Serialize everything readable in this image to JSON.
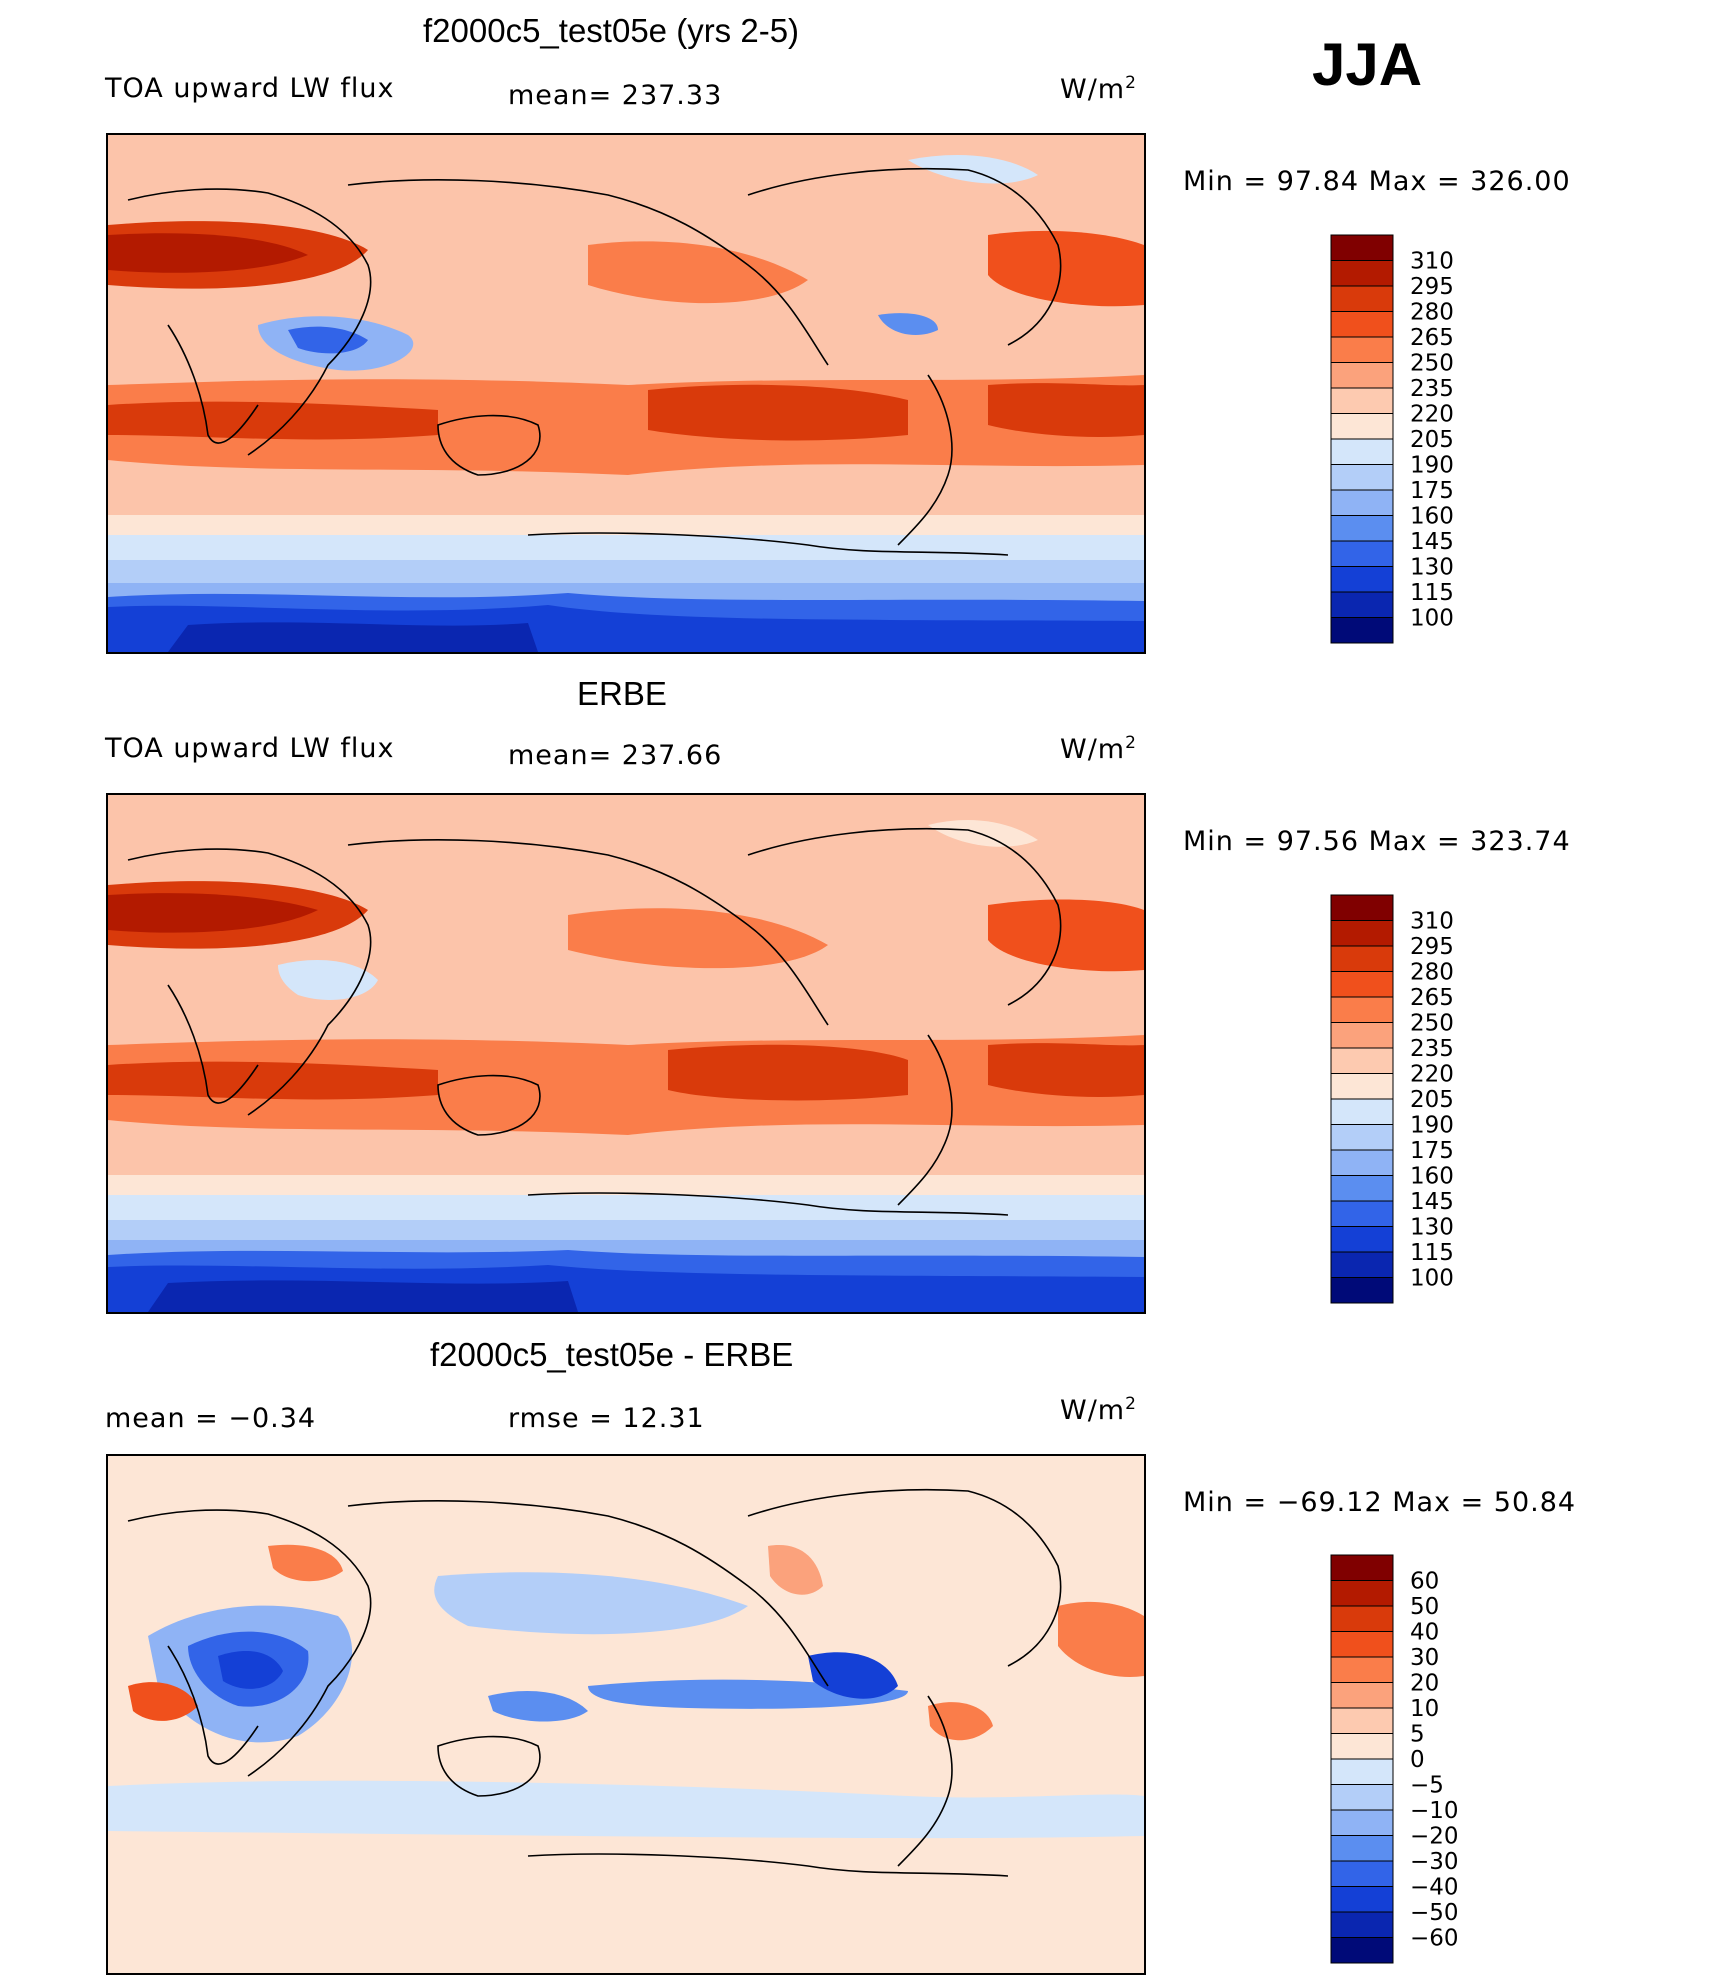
{
  "season": "JJA",
  "panels": [
    {
      "title": "f2000c5_test05e (yrs 2-5)",
      "left_label": "TOA upward LW flux",
      "center_label": "mean= 237.33",
      "units": "W/m",
      "units_exp": "2",
      "minmax": "Min =   97.84 Max =  326.00"
    },
    {
      "title": "ERBE",
      "left_label": "TOA upward LW flux",
      "center_label": "mean= 237.66",
      "units": "W/m",
      "units_exp": "2",
      "minmax": "Min =   97.56 Max =  323.74"
    },
    {
      "title": "f2000c5_test05e - ERBE",
      "left_label": "mean =   −0.34",
      "center_label": "rmse =   12.31",
      "units": "W/m",
      "units_exp": "2",
      "minmax": "Min = −69.12 Max =   50.84"
    }
  ],
  "chart_data": [
    {
      "type": "heatmap",
      "title": "f2000c5_test05e (yrs 2-5)",
      "variable": "TOA upward LW flux",
      "units": "W/m2",
      "mean": 237.33,
      "min": 97.84,
      "max": 326.0,
      "colorbar": {
        "levels": [
          "310",
          "295",
          "280",
          "265",
          "250",
          "235",
          "220",
          "205",
          "190",
          "175",
          "160",
          "145",
          "130",
          "115",
          "100"
        ],
        "colors": [
          "#800000",
          "#b31a00",
          "#d93a0b",
          "#f0501c",
          "#fa7d4a",
          "#fba27c",
          "#fdcab0",
          "#fde6d6",
          "#d4e6fa",
          "#b3cef8",
          "#8fb3f5",
          "#5b8ef0",
          "#3264e8",
          "#1440d6",
          "#0a26b0",
          "#000a78"
        ]
      }
    },
    {
      "type": "heatmap",
      "title": "ERBE",
      "variable": "TOA upward LW flux",
      "units": "W/m2",
      "mean": 237.66,
      "min": 97.56,
      "max": 323.74,
      "colorbar": {
        "levels": [
          "310",
          "295",
          "280",
          "265",
          "250",
          "235",
          "220",
          "205",
          "190",
          "175",
          "160",
          "145",
          "130",
          "115",
          "100"
        ],
        "colors": [
          "#800000",
          "#b31a00",
          "#d93a0b",
          "#f0501c",
          "#fa7d4a",
          "#fba27c",
          "#fdcab0",
          "#fde6d6",
          "#d4e6fa",
          "#b3cef8",
          "#8fb3f5",
          "#5b8ef0",
          "#3264e8",
          "#1440d6",
          "#0a26b0",
          "#000a78"
        ]
      }
    },
    {
      "type": "heatmap",
      "title": "f2000c5_test05e - ERBE",
      "units": "W/m2",
      "mean": -0.34,
      "rmse": 12.31,
      "min": -69.12,
      "max": 50.84,
      "colorbar": {
        "levels": [
          "60",
          "50",
          "40",
          "30",
          "20",
          "10",
          "5",
          "0",
          "−5",
          "−10",
          "−20",
          "−30",
          "−40",
          "−50",
          "−60"
        ],
        "colors": [
          "#800000",
          "#b31a00",
          "#d93a0b",
          "#f0501c",
          "#fa7d4a",
          "#fba27c",
          "#fdcab0",
          "#fde6d6",
          "#d4e6fa",
          "#b3cef8",
          "#8fb3f5",
          "#5b8ef0",
          "#3264e8",
          "#1440d6",
          "#0a26b0",
          "#000a78"
        ]
      }
    }
  ]
}
